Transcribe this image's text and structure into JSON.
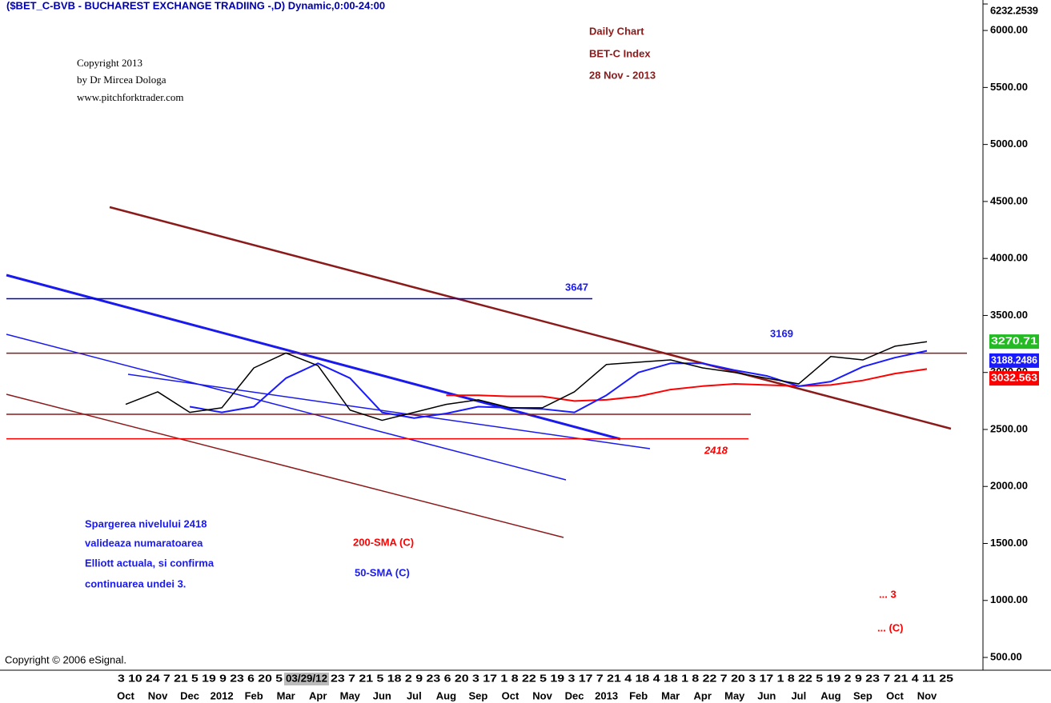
{
  "chart_data": {
    "type": "line",
    "title": "($BET_C-BVB - BUCHAREST EXCHANGE TRADIING -,D) Dynamic,0:00-24:00",
    "subtitle": [
      "Daily Chart",
      "BET-C Index",
      "28 Nov - 2013"
    ],
    "copyright": [
      "Copyright 2013",
      "by Dr Mircea Dologa",
      "www.pitchforktrader.com"
    ],
    "footer": "Copyright © 2006 eSignal.",
    "annotations": [
      "Spargerea nivelului 2418",
      "valideaza numaratoarea",
      "Elliott actuala, si confirma",
      "continuarea undei  3."
    ],
    "wave_labels": [
      "... 3",
      "... (C)"
    ],
    "day_labels": [
      "3 10 24 7  21 5  19 9  23 6  20 5",
      "03/29/12",
      "23 7  21 5  18 2 9  23 6  20 3  17 1 8  22 5  19 3  17 7  21 4  18 4  18 1 8  22 7  20 3  17 1 8  22 5  19 2 9  23 7  21 4 11 25"
    ],
    "categories": [
      "Oct",
      "Nov",
      "Dec",
      "2012",
      "Feb",
      "Mar",
      "Apr",
      "May",
      "Jun",
      "Jul",
      "Aug",
      "Sep",
      "Oct",
      "Nov",
      "Dec",
      "2013",
      "Feb",
      "Mar",
      "Apr",
      "May",
      "Jun",
      "Jul",
      "Aug",
      "Sep",
      "Oct",
      "Nov"
    ],
    "series": [
      {
        "color": "#000000",
        "values": [
          2720,
          2830,
          2650,
          2690,
          3040,
          3170,
          3060,
          2670,
          2580,
          2650,
          2720,
          2760,
          2690,
          2690,
          2830,
          3070,
          3090,
          3110,
          3040,
          3000,
          2950,
          2900,
          3140,
          3110,
          3230,
          3270
        ],
        "last": 3270.71,
        "last_color": "#22bb22"
      },
      {
        "name": "50-SMA (C)",
        "color": "#1a1aff",
        "values": [
          null,
          null,
          2700,
          2650,
          2700,
          2950,
          3080,
          2950,
          2650,
          2600,
          2640,
          2700,
          2690,
          2680,
          2650,
          2800,
          3000,
          3080,
          3080,
          3020,
          2970,
          2880,
          2920,
          3050,
          3130,
          3190
        ],
        "last": 3188.2486,
        "last_color": "#1a1aff"
      },
      {
        "name": "200-SMA (C)",
        "color": "#ff0000",
        "values": [
          null,
          null,
          null,
          null,
          null,
          null,
          null,
          null,
          null,
          null,
          2800,
          2800,
          2790,
          2790,
          2750,
          2760,
          2790,
          2850,
          2880,
          2900,
          2890,
          2880,
          2890,
          2930,
          2990,
          3030
        ],
        "last": 3032.563,
        "last_color": "#ff0000"
      }
    ],
    "levels": [
      {
        "value": 3647,
        "color": "#0000cc"
      },
      {
        "value": 3169,
        "color": "#0000cc"
      },
      {
        "value": 2418,
        "color": "#ff0000"
      }
    ],
    "ylim": [
      388,
      6232.2539
    ],
    "yticks": [
      {
        "value": 500,
        "label": "500.00"
      },
      {
        "value": 1000,
        "label": "1000.00"
      },
      {
        "value": 1500,
        "label": "1500.00"
      },
      {
        "value": 2000,
        "label": "2000.00"
      },
      {
        "value": 2500,
        "label": "2500.00"
      },
      {
        "value": 3000,
        "label": "3000.00"
      },
      {
        "value": 3500,
        "label": "3500.00"
      },
      {
        "value": 4000,
        "label": "4000.00"
      },
      {
        "value": 4500,
        "label": "4500.00"
      },
      {
        "value": 5000,
        "label": "5000.00"
      },
      {
        "value": 5500,
        "label": "5500.00"
      },
      {
        "value": 6000,
        "label": "6000.00"
      },
      6232.2539
    ]
  }
}
